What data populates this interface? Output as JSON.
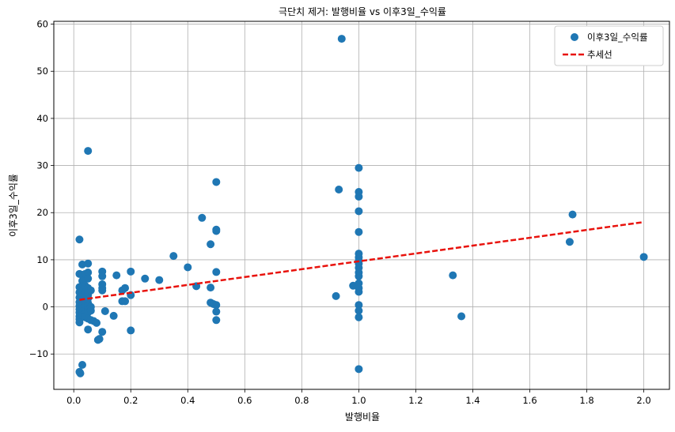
{
  "chart_data": {
    "type": "scatter",
    "title": "극단치 제거: 발행비율 vs 이후3일_수익률",
    "xlabel": "발행비율",
    "ylabel": "이후3일_수익률",
    "xlim": [
      -0.07,
      2.09
    ],
    "ylim": [
      -17.5,
      60.6
    ],
    "xticks": [
      "0.0",
      "0.2",
      "0.4",
      "0.6",
      "0.8",
      "1.0",
      "1.2",
      "1.4",
      "1.6",
      "1.8",
      "2.0"
    ],
    "yticks": [
      "−10",
      "0",
      "10",
      "20",
      "30",
      "40",
      "50",
      "60"
    ],
    "grid": true,
    "legend_position": "top-right",
    "legend": [
      "이후3일_수익률",
      "추세선"
    ],
    "colors": {
      "points": "#1f77b4",
      "trend": "#e8120c"
    },
    "series": [
      {
        "name": "이후3일_수익률",
        "points": [
          [
            0.02,
            14.3
          ],
          [
            0.02,
            7.0
          ],
          [
            0.02,
            4.2
          ],
          [
            0.02,
            3.1
          ],
          [
            0.02,
            2.0
          ],
          [
            0.02,
            1.0
          ],
          [
            0.02,
            0.2
          ],
          [
            0.02,
            -0.5
          ],
          [
            0.02,
            -1.2
          ],
          [
            0.02,
            -2.0
          ],
          [
            0.02,
            -2.6
          ],
          [
            0.02,
            -3.3
          ],
          [
            0.02,
            -13.8
          ],
          [
            0.023,
            -14.1
          ],
          [
            0.03,
            9.0
          ],
          [
            0.03,
            6.8
          ],
          [
            0.03,
            5.5
          ],
          [
            0.03,
            3.3
          ],
          [
            0.03,
            2.4
          ],
          [
            0.03,
            1.3
          ],
          [
            0.03,
            0.5
          ],
          [
            0.03,
            -0.3
          ],
          [
            0.03,
            -1.0
          ],
          [
            0.03,
            -1.8
          ],
          [
            0.03,
            -12.3
          ],
          [
            0.04,
            7.0
          ],
          [
            0.04,
            4.5
          ],
          [
            0.04,
            3.0
          ],
          [
            0.04,
            2.0
          ],
          [
            0.04,
            1.0
          ],
          [
            0.04,
            0.0
          ],
          [
            0.04,
            -0.8
          ],
          [
            0.04,
            -1.5
          ],
          [
            0.04,
            -2.2
          ],
          [
            0.05,
            33.1
          ],
          [
            0.05,
            9.2
          ],
          [
            0.05,
            7.3
          ],
          [
            0.05,
            6.0
          ],
          [
            0.05,
            4.0
          ],
          [
            0.05,
            3.2
          ],
          [
            0.05,
            2.5
          ],
          [
            0.05,
            1.8
          ],
          [
            0.05,
            0.8
          ],
          [
            0.05,
            0.3
          ],
          [
            0.05,
            -0.5
          ],
          [
            0.05,
            -1.2
          ],
          [
            0.05,
            -2.5
          ],
          [
            0.05,
            -4.8
          ],
          [
            0.06,
            3.5
          ],
          [
            0.06,
            0.0
          ],
          [
            0.06,
            -0.8
          ],
          [
            0.06,
            -2.8
          ],
          [
            0.07,
            -3.0
          ],
          [
            0.08,
            -3.4
          ],
          [
            0.085,
            -7.0
          ],
          [
            0.09,
            -6.8
          ],
          [
            0.1,
            7.5
          ],
          [
            0.1,
            6.5
          ],
          [
            0.1,
            4.8
          ],
          [
            0.1,
            4.0
          ],
          [
            0.1,
            3.5
          ],
          [
            0.1,
            -5.3
          ],
          [
            0.11,
            -0.9
          ],
          [
            0.14,
            -1.9
          ],
          [
            0.15,
            6.7
          ],
          [
            0.17,
            3.5
          ],
          [
            0.17,
            1.2
          ],
          [
            0.18,
            4.0
          ],
          [
            0.18,
            1.2
          ],
          [
            0.2,
            7.5
          ],
          [
            0.2,
            2.5
          ],
          [
            0.2,
            -5.0
          ],
          [
            0.25,
            6.0
          ],
          [
            0.3,
            5.7
          ],
          [
            0.35,
            10.8
          ],
          [
            0.4,
            8.4
          ],
          [
            0.43,
            4.4
          ],
          [
            0.45,
            18.9
          ],
          [
            0.48,
            13.3
          ],
          [
            0.48,
            4.1
          ],
          [
            0.48,
            0.9
          ],
          [
            0.49,
            0.6
          ],
          [
            0.5,
            26.5
          ],
          [
            0.5,
            16.4
          ],
          [
            0.5,
            16.1
          ],
          [
            0.5,
            7.4
          ],
          [
            0.5,
            0.4
          ],
          [
            0.5,
            -1.0
          ],
          [
            0.5,
            -2.8
          ],
          [
            0.92,
            2.3
          ],
          [
            0.93,
            24.9
          ],
          [
            0.94,
            56.9
          ],
          [
            0.98,
            4.5
          ],
          [
            1.0,
            29.5
          ],
          [
            1.0,
            24.4
          ],
          [
            1.0,
            23.4
          ],
          [
            1.0,
            20.3
          ],
          [
            1.0,
            15.9
          ],
          [
            1.0,
            11.3
          ],
          [
            1.0,
            10.5
          ],
          [
            1.0,
            9.8
          ],
          [
            1.0,
            9.2
          ],
          [
            1.0,
            8.3
          ],
          [
            1.0,
            7.3
          ],
          [
            1.0,
            6.5
          ],
          [
            1.0,
            5.0
          ],
          [
            1.0,
            4.0
          ],
          [
            1.0,
            3.2
          ],
          [
            1.0,
            0.4
          ],
          [
            1.0,
            -0.8
          ],
          [
            1.0,
            -2.2
          ],
          [
            1.0,
            -13.2
          ],
          [
            1.33,
            6.7
          ],
          [
            1.36,
            -2.0
          ],
          [
            1.74,
            13.8
          ],
          [
            1.75,
            19.6
          ],
          [
            2.0,
            10.6
          ]
        ]
      },
      {
        "name": "추세선",
        "points": [
          [
            0.02,
            1.5
          ],
          [
            2.0,
            18.0
          ]
        ]
      }
    ]
  }
}
